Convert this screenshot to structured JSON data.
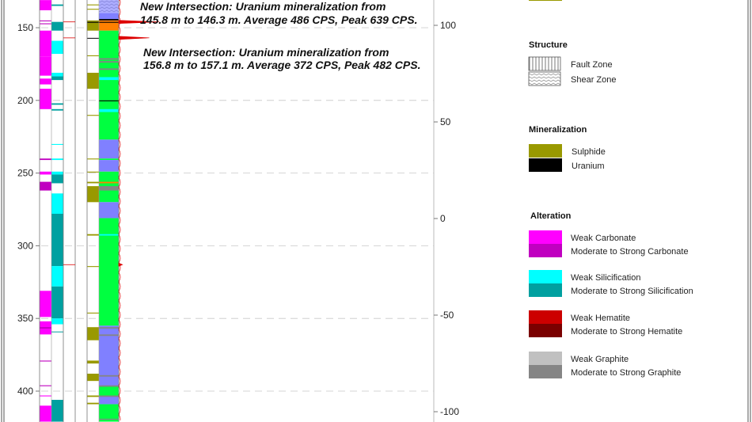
{
  "depth_axis": {
    "ticks": [
      150,
      200,
      250,
      300,
      350,
      400
    ]
  },
  "elevation_axis": {
    "ticks": [
      100,
      50,
      0,
      -50,
      -100
    ]
  },
  "annotations": [
    {
      "line1": "New Intersection: Uranium mineralization from",
      "line2": "145.8 m to 146.3 m. Average 486 CPS, Peak 639 CPS."
    },
    {
      "line1": "New Intersection: Uranium mineralization from",
      "line2": "156.8 m to 157.1 m. Average 372 CPS, Peak 482 CPS."
    }
  ],
  "colors": {
    "weak_carbonate": "#ff00ff",
    "strong_carbonate": "#c000c0",
    "weak_silicification": "#00ffff",
    "strong_silicification": "#00a0a0",
    "weak_hematite": "#cc0000",
    "strong_hematite": "#7a0000",
    "weak_graphite": "#c0c0c0",
    "strong_graphite": "#858585",
    "sulphide": "#999900",
    "uranium": "#000000",
    "litho_green": "#00ff40",
    "litho_violet": "#8080ff",
    "litho_orange": "#ff8000",
    "gamma": "#dd0000"
  },
  "columns": {
    "carbonate": [
      [
        131,
        138,
        "weak_carbonate"
      ],
      [
        145,
        145.6,
        "strong_carbonate"
      ],
      [
        147,
        147.6,
        "strong_carbonate"
      ],
      [
        152,
        170,
        "weak_carbonate"
      ],
      [
        170,
        183,
        "weak_carbonate"
      ],
      [
        185,
        189,
        "weak_carbonate"
      ],
      [
        192,
        206,
        "weak_carbonate"
      ],
      [
        240,
        241,
        "strong_carbonate"
      ],
      [
        249,
        251,
        "weak_carbonate"
      ],
      [
        256,
        262,
        "strong_carbonate"
      ],
      [
        331,
        349,
        "weak_carbonate"
      ],
      [
        352,
        361,
        "weak_carbonate"
      ],
      [
        356,
        357,
        "strong_carbonate"
      ],
      [
        379,
        379.6,
        "strong_carbonate"
      ],
      [
        396,
        396.6,
        "strong_carbonate"
      ],
      [
        403,
        403.6,
        "weak_carbonate"
      ],
      [
        410,
        421,
        "weak_carbonate"
      ]
    ],
    "silicification": [
      [
        134,
        135,
        "strong_silicification"
      ],
      [
        146,
        152,
        "strong_silicification"
      ],
      [
        159,
        168,
        "weak_silicification"
      ],
      [
        181,
        183.5,
        "weak_silicification"
      ],
      [
        183.5,
        186,
        "strong_silicification"
      ],
      [
        202,
        203,
        "strong_silicification"
      ],
      [
        206,
        207,
        "strong_silicification"
      ],
      [
        230,
        230.6,
        "weak_silicification"
      ],
      [
        240,
        241,
        "weak_silicification"
      ],
      [
        249,
        251,
        "weak_silicification"
      ],
      [
        251,
        257,
        "strong_silicification"
      ],
      [
        264,
        278,
        "weak_silicification"
      ],
      [
        278,
        314,
        "strong_silicification"
      ],
      [
        314,
        328,
        "weak_silicification"
      ],
      [
        328,
        350,
        "strong_silicification"
      ],
      [
        350,
        354,
        "weak_silicification"
      ],
      [
        359,
        359.5,
        "strong_silicification"
      ],
      [
        406,
        421,
        "strong_silicification"
      ]
    ],
    "mineralization": [
      [
        134,
        134.6,
        "sulphide"
      ],
      [
        137,
        137.6,
        "sulphide"
      ],
      [
        145,
        152,
        "sulphide"
      ],
      [
        146,
        146.6,
        "uranium"
      ],
      [
        157,
        157.5,
        "uranium"
      ],
      [
        169,
        169.6,
        "sulphide"
      ],
      [
        181,
        192,
        "sulphide"
      ],
      [
        210,
        210.6,
        "sulphide"
      ],
      [
        240,
        240.6,
        "sulphide"
      ],
      [
        249,
        249.6,
        "sulphide"
      ],
      [
        256,
        257,
        "sulphide"
      ],
      [
        259,
        270,
        "sulphide"
      ],
      [
        292,
        293,
        "sulphide"
      ],
      [
        314,
        314.6,
        "sulphide"
      ],
      [
        346,
        346.6,
        "sulphide"
      ],
      [
        356,
        365,
        "sulphide"
      ],
      [
        379,
        381,
        "sulphide"
      ],
      [
        388,
        393,
        "sulphide"
      ],
      [
        403,
        404,
        "sulphide"
      ],
      [
        408,
        409,
        "sulphide"
      ]
    ],
    "lithology": [
      [
        131,
        145,
        "litho_violet"
      ],
      [
        144,
        145,
        "uranium"
      ],
      [
        145,
        152,
        "litho_orange"
      ],
      [
        146,
        146.6,
        "uranium"
      ],
      [
        152,
        227,
        "litho_green"
      ],
      [
        171,
        172,
        "strong_graphite"
      ],
      [
        173,
        174,
        "strong_graphite"
      ],
      [
        178,
        179,
        "strong_graphite"
      ],
      [
        184,
        186,
        "weak_silicification"
      ],
      [
        200,
        200.6,
        "uranium"
      ],
      [
        206,
        208,
        "weak_silicification"
      ],
      [
        227,
        240,
        "litho_violet"
      ],
      [
        240,
        241,
        "litho_green"
      ],
      [
        241,
        249,
        "litho_violet"
      ],
      [
        249,
        270,
        "litho_green"
      ],
      [
        256,
        257,
        "litho_orange"
      ],
      [
        259,
        262,
        "strong_graphite"
      ],
      [
        270,
        281,
        "litho_violet"
      ],
      [
        281,
        355,
        "litho_green"
      ],
      [
        292,
        293,
        "weak_silicification"
      ],
      [
        355,
        409,
        "litho_violet"
      ],
      [
        356,
        357,
        "strong_graphite"
      ],
      [
        361,
        362,
        "strong_graphite"
      ],
      [
        389,
        390,
        "strong_graphite"
      ],
      [
        396,
        397,
        "strong_graphite"
      ],
      [
        397,
        403,
        "litho_green"
      ],
      [
        403,
        404,
        "strong_graphite"
      ],
      [
        409,
        421,
        "litho_green"
      ],
      [
        419,
        419.7,
        "strong_graphite"
      ]
    ]
  },
  "gamma_peaks": [
    [
      146,
      639
    ],
    [
      157,
      482
    ],
    [
      313,
      60
    ]
  ],
  "legend": {
    "structure": {
      "title": "Structure",
      "items": [
        {
          "label": "Fault Zone",
          "pattern": "fault"
        },
        {
          "label": "Shear Zone",
          "pattern": "shear"
        }
      ]
    },
    "mineralization": {
      "title": "Mineralization",
      "items": [
        {
          "label": "Sulphide",
          "color": "#999900"
        },
        {
          "label": "Uranium",
          "color": "#000000"
        }
      ]
    },
    "alteration": {
      "title": "Alteration",
      "items": [
        {
          "label": "Weak Carbonate",
          "color": "#ff00ff"
        },
        {
          "label": "Moderate to Strong Carbonate",
          "color": "#c000c0"
        },
        {
          "label": "Weak Silicification",
          "color": "#00ffff"
        },
        {
          "label": "Moderate to Strong Silicification",
          "color": "#00a0a0"
        },
        {
          "label": "Weak Hematite",
          "color": "#cc0000"
        },
        {
          "label": "Moderate to Strong Hematite",
          "color": "#7a0000"
        },
        {
          "label": "Weak Graphite",
          "color": "#c0c0c0"
        },
        {
          "label": "Moderate to Strong Graphite",
          "color": "#858585"
        }
      ]
    }
  }
}
